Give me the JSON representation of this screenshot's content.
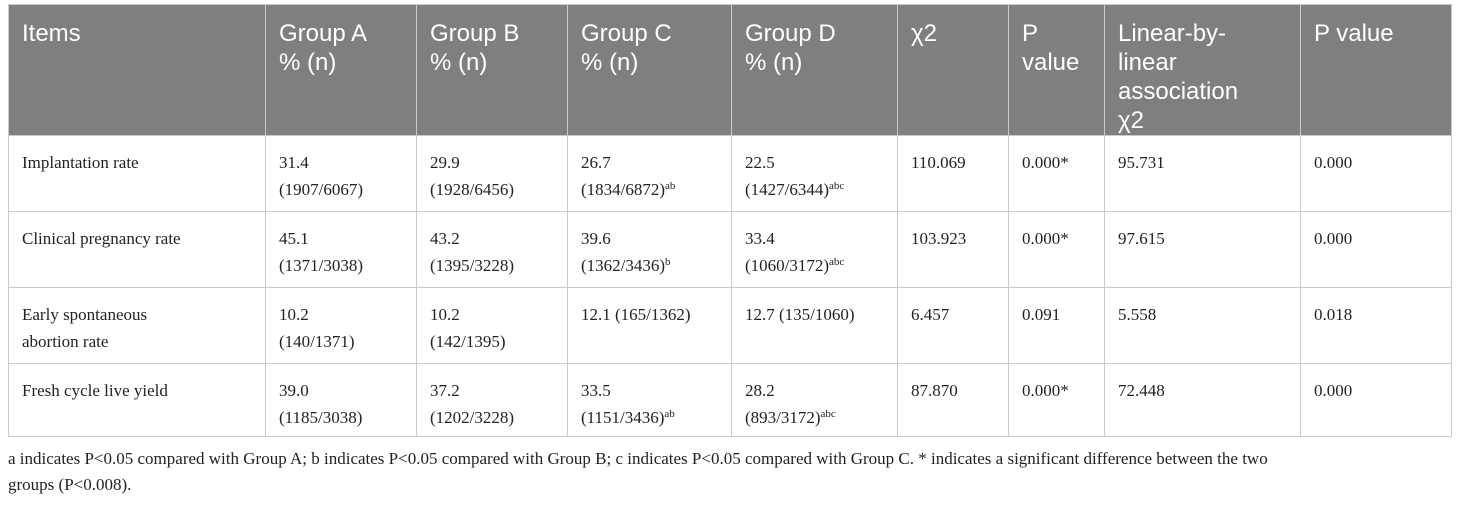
{
  "headers": [
    [
      "Items"
    ],
    [
      "Group A",
      "% (n)"
    ],
    [
      "Group B",
      "% (n)"
    ],
    [
      "Group C",
      "% (n)"
    ],
    [
      "Group D",
      "% (n)"
    ],
    [
      "χ2"
    ],
    [
      "P",
      "value"
    ],
    [
      "Linear-by-",
      "linear",
      "association",
      "χ2"
    ],
    [
      "P value"
    ]
  ],
  "rows": [
    {
      "item": "Implantation rate",
      "cells": [
        {
          "l1": "31.4",
          "l2": "(1907/6067)",
          "sup": ""
        },
        {
          "l1": "29.9",
          "l2": "(1928/6456)",
          "sup": ""
        },
        {
          "l1": "26.7",
          "l2": "(1834/6872)",
          "sup": "ab"
        },
        {
          "l1": "22.5",
          "l2": "(1427/6344)",
          "sup": "abc"
        }
      ],
      "chi2": "110.069",
      "p": "0.000*",
      "linear": "95.731",
      "p2": "0.000"
    },
    {
      "item": "Clinical pregnancy rate",
      "cells": [
        {
          "l1": "45.1",
          "l2": "(1371/3038)",
          "sup": ""
        },
        {
          "l1": "43.2",
          "l2": "(1395/3228)",
          "sup": ""
        },
        {
          "l1": "39.6",
          "l2": "(1362/3436)",
          "sup": "b"
        },
        {
          "l1": "33.4",
          "l2": "(1060/3172)",
          "sup": "abc"
        }
      ],
      "chi2": "103.923",
      "p": "0.000*",
      "linear": "97.615",
      "p2": "0.000"
    },
    {
      "item": "Early spontaneous abortion rate",
      "itemLines": [
        "Early spontaneous",
        "abortion rate"
      ],
      "cells": [
        {
          "l1": "10.2",
          "l2": "(140/1371)",
          "sup": ""
        },
        {
          "l1": "10.2",
          "l2": "(142/1395)",
          "sup": ""
        },
        {
          "l1": "12.1 (165/1362)",
          "l2": "",
          "sup": ""
        },
        {
          "l1": "12.7 (135/1060)",
          "l2": "",
          "sup": ""
        }
      ],
      "chi2": "6.457",
      "p": "0.091",
      "linear": "5.558",
      "p2": "0.018"
    },
    {
      "item": "Fresh cycle live yield",
      "cells": [
        {
          "l1": "39.0",
          "l2": "(1185/3038)",
          "sup": ""
        },
        {
          "l1": "37.2",
          "l2": "(1202/3228)",
          "sup": ""
        },
        {
          "l1": "33.5",
          "l2": "(1151/3436)",
          "sup": "ab"
        },
        {
          "l1": "28.2",
          "l2": "(893/3172)",
          "sup": "abc"
        }
      ],
      "chi2": "87.870",
      "p": "0.000*",
      "linear": "72.448",
      "p2": "0.000"
    }
  ],
  "footnote": {
    "line1": "a indicates P<0.05 compared with Group A; b indicates P<0.05 compared with Group B; c indicates P<0.05 compared with Group C. * indicates a significant difference between the two",
    "line2": "groups (P<0.008)."
  },
  "colors": {
    "header_bg": "#7f7f7f",
    "header_text": "#ffffff",
    "border": "#c9c9c9",
    "body_text": "#222222"
  }
}
